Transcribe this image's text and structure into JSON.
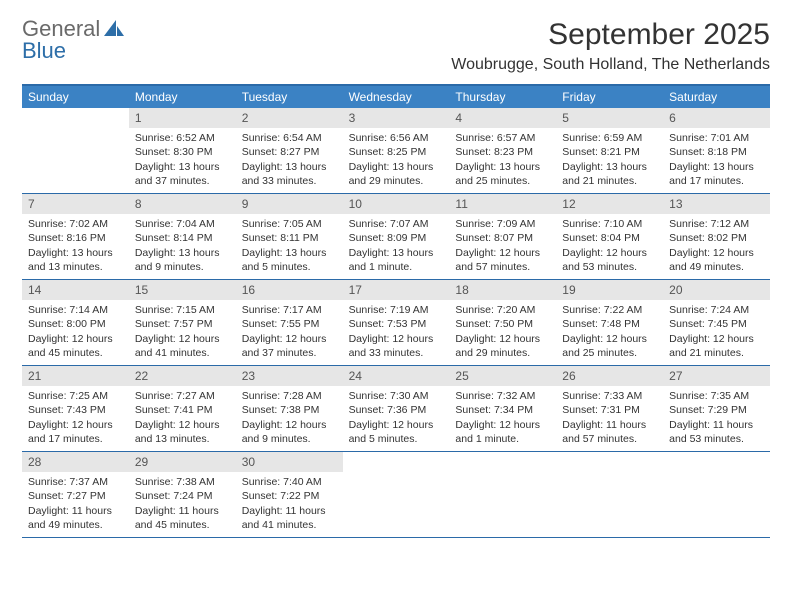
{
  "brand": {
    "line1": "General",
    "line2": "Blue"
  },
  "colors": {
    "header_bg": "#3b82c4",
    "header_text": "#ffffff",
    "rule": "#2b6aa8",
    "daynum_bg": "#e6e6e6",
    "daynum_text": "#555555",
    "body_text": "#333333",
    "brand_gray": "#6a6a6a",
    "brand_blue": "#2d6ea8"
  },
  "title": "September 2025",
  "location": "Woubrugge, South Holland, The Netherlands",
  "day_headers": [
    "Sunday",
    "Monday",
    "Tuesday",
    "Wednesday",
    "Thursday",
    "Friday",
    "Saturday"
  ],
  "weeks": [
    [
      null,
      {
        "n": "1",
        "sunrise": "Sunrise: 6:52 AM",
        "sunset": "Sunset: 8:30 PM",
        "daylight1": "Daylight: 13 hours",
        "daylight2": "and 37 minutes."
      },
      {
        "n": "2",
        "sunrise": "Sunrise: 6:54 AM",
        "sunset": "Sunset: 8:27 PM",
        "daylight1": "Daylight: 13 hours",
        "daylight2": "and 33 minutes."
      },
      {
        "n": "3",
        "sunrise": "Sunrise: 6:56 AM",
        "sunset": "Sunset: 8:25 PM",
        "daylight1": "Daylight: 13 hours",
        "daylight2": "and 29 minutes."
      },
      {
        "n": "4",
        "sunrise": "Sunrise: 6:57 AM",
        "sunset": "Sunset: 8:23 PM",
        "daylight1": "Daylight: 13 hours",
        "daylight2": "and 25 minutes."
      },
      {
        "n": "5",
        "sunrise": "Sunrise: 6:59 AM",
        "sunset": "Sunset: 8:21 PM",
        "daylight1": "Daylight: 13 hours",
        "daylight2": "and 21 minutes."
      },
      {
        "n": "6",
        "sunrise": "Sunrise: 7:01 AM",
        "sunset": "Sunset: 8:18 PM",
        "daylight1": "Daylight: 13 hours",
        "daylight2": "and 17 minutes."
      }
    ],
    [
      {
        "n": "7",
        "sunrise": "Sunrise: 7:02 AM",
        "sunset": "Sunset: 8:16 PM",
        "daylight1": "Daylight: 13 hours",
        "daylight2": "and 13 minutes."
      },
      {
        "n": "8",
        "sunrise": "Sunrise: 7:04 AM",
        "sunset": "Sunset: 8:14 PM",
        "daylight1": "Daylight: 13 hours",
        "daylight2": "and 9 minutes."
      },
      {
        "n": "9",
        "sunrise": "Sunrise: 7:05 AM",
        "sunset": "Sunset: 8:11 PM",
        "daylight1": "Daylight: 13 hours",
        "daylight2": "and 5 minutes."
      },
      {
        "n": "10",
        "sunrise": "Sunrise: 7:07 AM",
        "sunset": "Sunset: 8:09 PM",
        "daylight1": "Daylight: 13 hours",
        "daylight2": "and 1 minute."
      },
      {
        "n": "11",
        "sunrise": "Sunrise: 7:09 AM",
        "sunset": "Sunset: 8:07 PM",
        "daylight1": "Daylight: 12 hours",
        "daylight2": "and 57 minutes."
      },
      {
        "n": "12",
        "sunrise": "Sunrise: 7:10 AM",
        "sunset": "Sunset: 8:04 PM",
        "daylight1": "Daylight: 12 hours",
        "daylight2": "and 53 minutes."
      },
      {
        "n": "13",
        "sunrise": "Sunrise: 7:12 AM",
        "sunset": "Sunset: 8:02 PM",
        "daylight1": "Daylight: 12 hours",
        "daylight2": "and 49 minutes."
      }
    ],
    [
      {
        "n": "14",
        "sunrise": "Sunrise: 7:14 AM",
        "sunset": "Sunset: 8:00 PM",
        "daylight1": "Daylight: 12 hours",
        "daylight2": "and 45 minutes."
      },
      {
        "n": "15",
        "sunrise": "Sunrise: 7:15 AM",
        "sunset": "Sunset: 7:57 PM",
        "daylight1": "Daylight: 12 hours",
        "daylight2": "and 41 minutes."
      },
      {
        "n": "16",
        "sunrise": "Sunrise: 7:17 AM",
        "sunset": "Sunset: 7:55 PM",
        "daylight1": "Daylight: 12 hours",
        "daylight2": "and 37 minutes."
      },
      {
        "n": "17",
        "sunrise": "Sunrise: 7:19 AM",
        "sunset": "Sunset: 7:53 PM",
        "daylight1": "Daylight: 12 hours",
        "daylight2": "and 33 minutes."
      },
      {
        "n": "18",
        "sunrise": "Sunrise: 7:20 AM",
        "sunset": "Sunset: 7:50 PM",
        "daylight1": "Daylight: 12 hours",
        "daylight2": "and 29 minutes."
      },
      {
        "n": "19",
        "sunrise": "Sunrise: 7:22 AM",
        "sunset": "Sunset: 7:48 PM",
        "daylight1": "Daylight: 12 hours",
        "daylight2": "and 25 minutes."
      },
      {
        "n": "20",
        "sunrise": "Sunrise: 7:24 AM",
        "sunset": "Sunset: 7:45 PM",
        "daylight1": "Daylight: 12 hours",
        "daylight2": "and 21 minutes."
      }
    ],
    [
      {
        "n": "21",
        "sunrise": "Sunrise: 7:25 AM",
        "sunset": "Sunset: 7:43 PM",
        "daylight1": "Daylight: 12 hours",
        "daylight2": "and 17 minutes."
      },
      {
        "n": "22",
        "sunrise": "Sunrise: 7:27 AM",
        "sunset": "Sunset: 7:41 PM",
        "daylight1": "Daylight: 12 hours",
        "daylight2": "and 13 minutes."
      },
      {
        "n": "23",
        "sunrise": "Sunrise: 7:28 AM",
        "sunset": "Sunset: 7:38 PM",
        "daylight1": "Daylight: 12 hours",
        "daylight2": "and 9 minutes."
      },
      {
        "n": "24",
        "sunrise": "Sunrise: 7:30 AM",
        "sunset": "Sunset: 7:36 PM",
        "daylight1": "Daylight: 12 hours",
        "daylight2": "and 5 minutes."
      },
      {
        "n": "25",
        "sunrise": "Sunrise: 7:32 AM",
        "sunset": "Sunset: 7:34 PM",
        "daylight1": "Daylight: 12 hours",
        "daylight2": "and 1 minute."
      },
      {
        "n": "26",
        "sunrise": "Sunrise: 7:33 AM",
        "sunset": "Sunset: 7:31 PM",
        "daylight1": "Daylight: 11 hours",
        "daylight2": "and 57 minutes."
      },
      {
        "n": "27",
        "sunrise": "Sunrise: 7:35 AM",
        "sunset": "Sunset: 7:29 PM",
        "daylight1": "Daylight: 11 hours",
        "daylight2": "and 53 minutes."
      }
    ],
    [
      {
        "n": "28",
        "sunrise": "Sunrise: 7:37 AM",
        "sunset": "Sunset: 7:27 PM",
        "daylight1": "Daylight: 11 hours",
        "daylight2": "and 49 minutes."
      },
      {
        "n": "29",
        "sunrise": "Sunrise: 7:38 AM",
        "sunset": "Sunset: 7:24 PM",
        "daylight1": "Daylight: 11 hours",
        "daylight2": "and 45 minutes."
      },
      {
        "n": "30",
        "sunrise": "Sunrise: 7:40 AM",
        "sunset": "Sunset: 7:22 PM",
        "daylight1": "Daylight: 11 hours",
        "daylight2": "and 41 minutes."
      },
      null,
      null,
      null,
      null
    ]
  ]
}
